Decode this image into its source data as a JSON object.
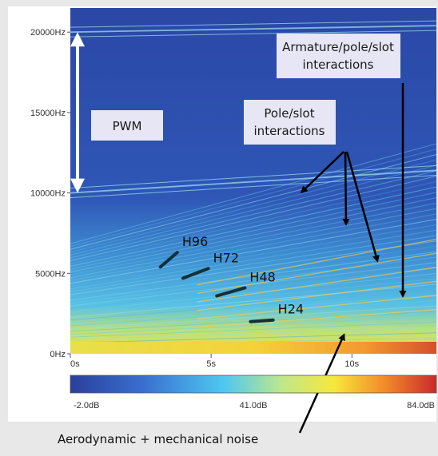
{
  "chart_data": {
    "type": "heatmap",
    "title": "",
    "xlabel": "",
    "ylabel": "",
    "x_ticks": [
      "0s",
      "5s",
      "10s"
    ],
    "x_tick_values": [
      0,
      5,
      10
    ],
    "xlim": [
      0,
      13
    ],
    "y_ticks": [
      "20000Hz",
      "15000Hz",
      "10000Hz",
      "5000Hz",
      "0Hz"
    ],
    "y_tick_values": [
      20000,
      15000,
      10000,
      5000,
      0
    ],
    "ylim": [
      0,
      21500
    ],
    "colorbar": {
      "labels": [
        "-2.0dB",
        "41.0dB",
        "84.0dB"
      ],
      "values": [
        -2.0,
        41.0,
        84.0
      ],
      "colors": [
        "#2a3f9a",
        "#3a7fd0",
        "#4fc8f0",
        "#bfe88a",
        "#f6e83a",
        "#f28a2a",
        "#c82a2a"
      ]
    },
    "background_color": "#2c4aa8",
    "harmonics": [
      {
        "label": "H96",
        "x": [
          3.2,
          3.8
        ],
        "y": [
          5400,
          6300
        ]
      },
      {
        "label": "H72",
        "x": [
          4.0,
          4.9
        ],
        "y": [
          4700,
          5300
        ]
      },
      {
        "label": "H48",
        "x": [
          5.2,
          6.2
        ],
        "y": [
          3600,
          4100
        ]
      },
      {
        "label": "H24",
        "x": [
          6.4,
          7.2
        ],
        "y": [
          2000,
          2100
        ]
      }
    ],
    "pwm_band": {
      "label": "PWM",
      "from": 10000,
      "to": 20000
    },
    "annotations": [
      {
        "text_lines": [
          "Armature/pole/slot",
          "interactions"
        ]
      },
      {
        "text_lines": [
          "Pole/slot",
          "interactions"
        ]
      }
    ],
    "bottom_note": "Aerodynamic + mechanical noise"
  }
}
